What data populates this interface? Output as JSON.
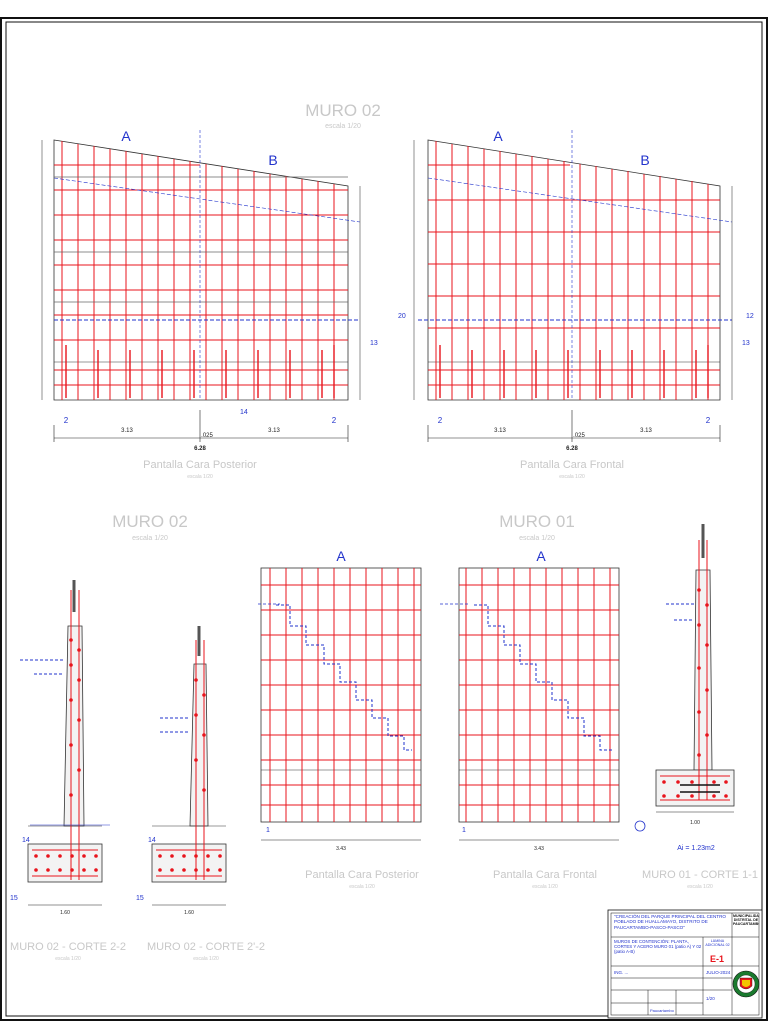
{
  "views": {
    "muro02_title": "MURO 02",
    "muro02_scale": "escala 1/20",
    "muro01_title": "MURO 01",
    "muro01_scale": "escala 1/20",
    "pantalla_posterior": "Pantalla Cara Posterior",
    "pantalla_frontal": "Pantalla Cara Frontal",
    "corte_a": "MURO 02 - CORTE 2-2",
    "corte_b": "MURO 02 - CORTE 2'-2",
    "corte_c": "MURO 01 - CORTE 1-1",
    "view_scale": "escala 1/20"
  },
  "zones": {
    "a": "A",
    "b": "B"
  },
  "dims": {
    "left_half": "3.13",
    "joint": ".025",
    "right_half": "3.13",
    "total": "6.28",
    "small_width": "3.43",
    "base_width": "1.60",
    "base_width_c": "1.00",
    "section_c_note": "Ai = 1.23m2",
    "marker_1": "1",
    "marker_2": "2",
    "marker_12": "12",
    "marker_13": "13",
    "marker_14": "14",
    "marker_15": "15",
    "marker_20": "20"
  },
  "title_block": {
    "project": "\"CREACIÓN DEL PARQUE PRINCIPAL DEL CENTRO POBLADO DE HUALLAMAYO, DISTRITO DE PAUCARTAMBO-PASCO-PASCO\"",
    "institution": "MUNICIPALIDAD DISTRITAL DE PAUCARTAMBO",
    "content": "MUROS DE CONTENCIÓN: PLANTA, CORTES Y ACERO MURO 01 (patio A) Y 02 (patio A-B)",
    "sheet_label": "LÁMINA ADICIONAL 02",
    "sheet_code": "E-1",
    "designer": "ING. ...",
    "date": "JULIO-2024",
    "location": "Paucartambo",
    "scale": "1/20"
  },
  "colors": {
    "rebar": "#e8141c",
    "dim": "#2233cc",
    "ink": "#222222",
    "ghost": "#c8c8c8"
  }
}
